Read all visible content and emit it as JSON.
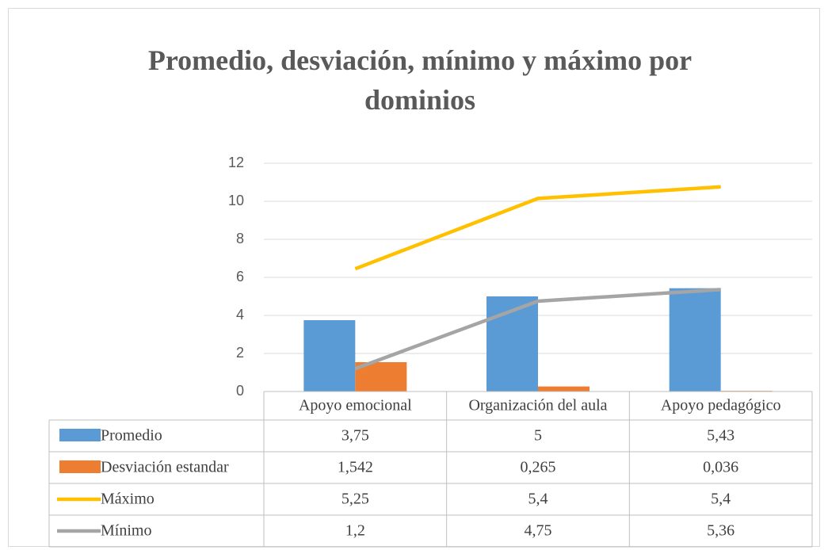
{
  "chart_data": {
    "type": "bar",
    "title": "Promedio, desviación, mínimo y máximo por dominios",
    "categories": [
      "Apoyo emocional",
      "Organización del aula",
      "Apoyo pedagógico"
    ],
    "series": [
      {
        "name": "Promedio",
        "type": "bar",
        "color": "#5b9bd5",
        "values": [
          3.75,
          5,
          5.43
        ],
        "value_labels": [
          "3,75",
          "5",
          "5,43"
        ]
      },
      {
        "name": "Desviación estandar",
        "type": "bar",
        "color": "#ed7d31",
        "values": [
          1.542,
          0.265,
          0.036
        ],
        "value_labels": [
          "1,542",
          "0,265",
          "0,036"
        ]
      },
      {
        "name": "Máximo",
        "type": "line",
        "color": "#ffc000",
        "values": [
          5.25,
          5.4,
          5.4
        ],
        "value_labels": [
          "5,25",
          "5,4",
          "5,4"
        ]
      },
      {
        "name": "Mínimo",
        "type": "line",
        "color": "#a5a5a5",
        "values": [
          1.2,
          4.75,
          5.36
        ],
        "value_labels": [
          "1,2",
          "4,75",
          "5,36"
        ]
      }
    ],
    "stacked_lines": true,
    "ylim": [
      0,
      12
    ],
    "yticks": [
      0,
      2,
      4,
      6,
      8,
      10,
      12
    ],
    "grid": true,
    "legend": "data-table"
  }
}
